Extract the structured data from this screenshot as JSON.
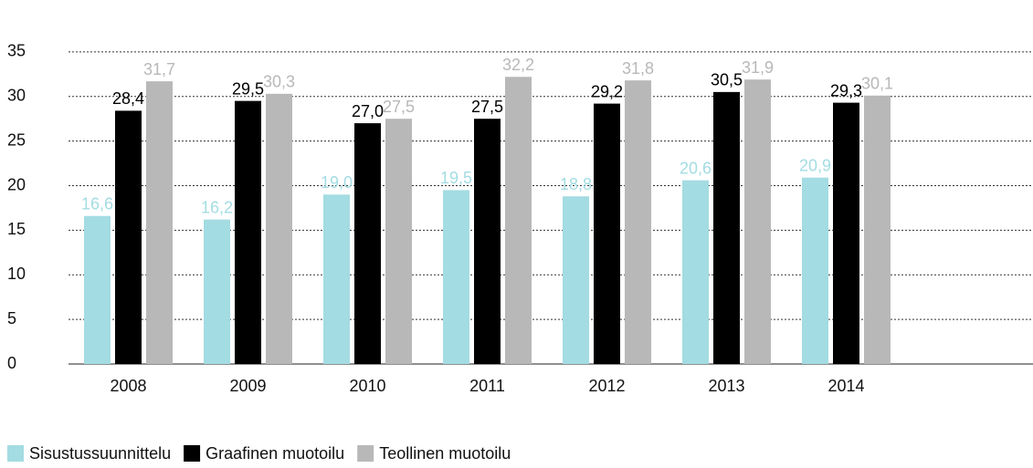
{
  "chart_data": {
    "type": "bar",
    "categories": [
      "2008",
      "2009",
      "2010",
      "2011",
      "2012",
      "2013",
      "2014"
    ],
    "series": [
      {
        "name": "Sisustussuunnittelu",
        "color": "#a3dce2",
        "values": [
          16.6,
          16.2,
          19.0,
          19.5,
          18.8,
          20.6,
          20.9
        ],
        "value_labels": [
          "16,6",
          "16,2",
          "19,0",
          "19,5",
          "18,8",
          "20,6",
          "20,9"
        ]
      },
      {
        "name": "Graafinen muotoilu",
        "color": "#000000",
        "values": [
          28.4,
          29.5,
          27.0,
          27.5,
          29.2,
          30.5,
          29.3
        ],
        "value_labels": [
          "28,4",
          "29,5",
          "27,0",
          "27,5",
          "29,2",
          "30,5",
          "29,3"
        ]
      },
      {
        "name": "Teollinen muotoilu",
        "color": "#b8b8b9",
        "values": [
          31.7,
          30.3,
          27.5,
          32.2,
          31.8,
          31.9,
          30.1
        ],
        "value_labels": [
          "31,7",
          "30,3",
          "27,5",
          "32,2",
          "31,8",
          "31,9",
          "30,1"
        ]
      }
    ],
    "ylim": [
      0,
      40
    ],
    "yticks": [
      0,
      5,
      10,
      15,
      20,
      25,
      30,
      35
    ],
    "grid": true,
    "legend": "bottom"
  }
}
